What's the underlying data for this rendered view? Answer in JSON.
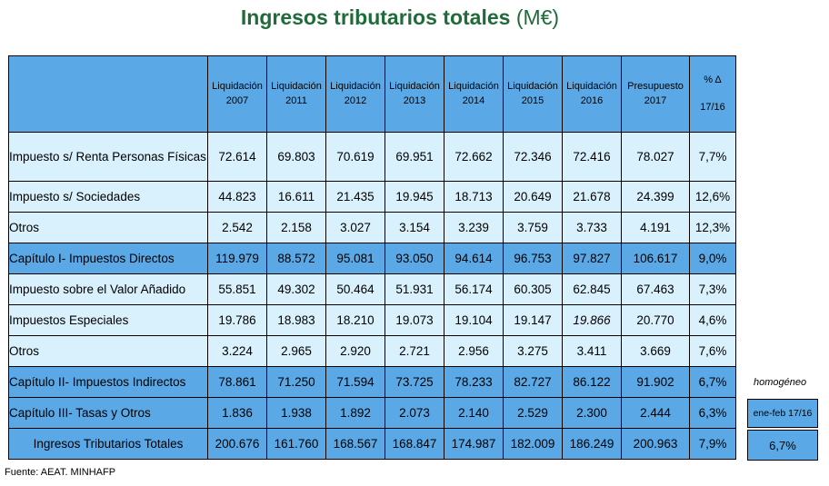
{
  "title": {
    "bold": "Ingresos tributarios totales",
    "unit": "(M€)"
  },
  "header": {
    "columns": [
      {
        "l1": "Liquidación",
        "l2": "2007"
      },
      {
        "l1": "Liquidación",
        "l2": "2011"
      },
      {
        "l1": "Liquidación",
        "l2": "2012"
      },
      {
        "l1": "Liquidación",
        "l2": "2013"
      },
      {
        "l1": "Liquidación",
        "l2": "2014"
      },
      {
        "l1": "Liquidación",
        "l2": "2015"
      },
      {
        "l1": "Liquidación",
        "l2": "2016"
      },
      {
        "l1": "Presupuesto",
        "l2": "2017"
      }
    ],
    "pct_top": "% Δ",
    "pct_bottom": "17/16"
  },
  "rows": [
    {
      "label": "Impuesto s/ Renta Personas Físicas",
      "values": [
        "72.614",
        "69.803",
        "70.619",
        "69.951",
        "72.662",
        "72.346",
        "72.416",
        "78.027"
      ],
      "pct": "7,7%"
    },
    {
      "label": "Impuesto s/ Sociedades",
      "values": [
        "44.823",
        "16.611",
        "21.435",
        "19.945",
        "18.713",
        "20.649",
        "21.678",
        "24.399"
      ],
      "pct": "12,6%"
    },
    {
      "label": "Otros",
      "values": [
        "2.542",
        "2.158",
        "3.027",
        "3.154",
        "3.239",
        "3.759",
        "3.733",
        "4.191"
      ],
      "pct": "12,3%"
    },
    {
      "label": "Capítulo I- Impuestos Directos",
      "values": [
        "119.979",
        "88.572",
        "95.081",
        "93.050",
        "94.614",
        "96.753",
        "97.827",
        "106.617"
      ],
      "pct": "9,0%"
    },
    {
      "label": "Impuesto sobre el Valor Añadido",
      "values": [
        "55.851",
        "49.302",
        "50.464",
        "51.931",
        "56.174",
        "60.305",
        "62.845",
        "67.463"
      ],
      "pct": "7,3%"
    },
    {
      "label": "Impuestos Especiales",
      "values": [
        "19.786",
        "18.983",
        "18.210",
        "19.073",
        "19.104",
        "19.147",
        "19.866",
        "20.770"
      ],
      "pct": "4,6%"
    },
    {
      "label": "Otros",
      "values": [
        "3.224",
        "2.965",
        "2.920",
        "2.721",
        "2.956",
        "3.275",
        "3.411",
        "3.669"
      ],
      "pct": "7,6%"
    },
    {
      "label": "Capítulo II- Impuestos Indirectos",
      "values": [
        "78.861",
        "71.250",
        "71.594",
        "73.725",
        "78.233",
        "82.727",
        "86.122",
        "91.902"
      ],
      "pct": "6,7%"
    },
    {
      "label": "Capítulo III- Tasas y Otros",
      "values": [
        "1.836",
        "1.938",
        "1.892",
        "2.073",
        "2.140",
        "2.529",
        "2.300",
        "2.444"
      ],
      "pct": "6,3%"
    },
    {
      "label": "Ingresos Tributarios Totales",
      "values": [
        "200.676",
        "161.760",
        "168.567",
        "168.847",
        "174.987",
        "182.009",
        "186.249",
        "200.963"
      ],
      "pct": "7,9%"
    }
  ],
  "side": {
    "label": "homogéneo",
    "header": "ene-feb 17/16",
    "value": "6,7%"
  },
  "source": "Fuente: AEAT.  MINHAFP"
}
